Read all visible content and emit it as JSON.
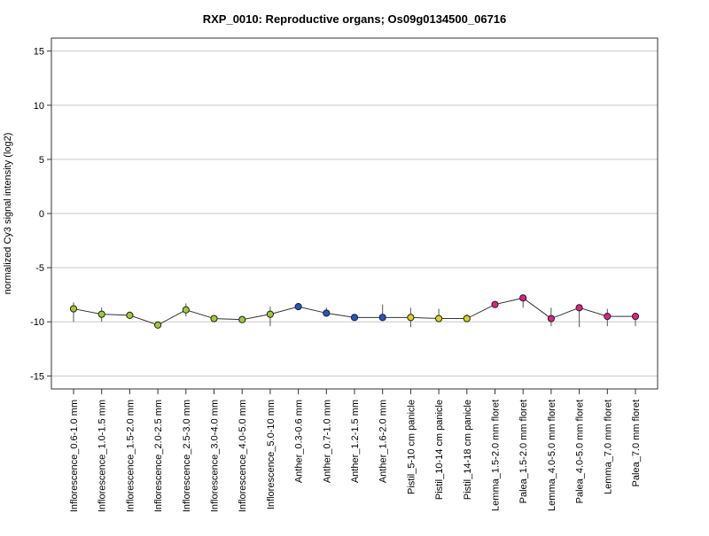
{
  "chart_data": {
    "type": "line",
    "title": "RXP_0010: Reproductive organs; Os09g0134500_06716",
    "xlabel": "",
    "ylabel": "normalized Cy3 signal intensity (log2)",
    "ylim": [
      -16.2,
      16.2
    ],
    "yticks": [
      -15,
      -10,
      -5,
      0,
      5,
      10,
      15
    ],
    "grid": true,
    "categories": [
      "Inflorescence_0.6-1.0 mm",
      "Inflorescence_1.0-1.5 mm",
      "Inflorescence_1.5-2.0 mm",
      "Inflorescence_2.0-2.5 mm",
      "Inflorescence_2.5-3.0 mm",
      "Inflorescence_3.0-4.0 mm",
      "Inflorescence_4.0-5.0 mm",
      "Inflorescence_5.0-10 mm",
      "Anther_0.3-0.6 mm",
      "Anther_0.7-1.0 mm",
      "Anther_1.2-1.5 mm",
      "Anther_1.6-2.0 mm",
      "Pistil_5-10 cm panicle",
      "Pistil_10-14 cm panicle",
      "Pistil_14-18 cm panicle",
      "Lemma_1.5-2.0 mm floret",
      "Palea_1.5-2.0 mm floret",
      "Lemma_4.0-5.0 mm floret",
      "Palea_4.0-5.0 mm floret",
      "Lemma_7.0 mm floret",
      "Palea_7.0 mm floret"
    ],
    "values": [
      -8.8,
      -9.3,
      -9.4,
      -10.3,
      -8.9,
      -9.7,
      -9.8,
      -9.3,
      -8.6,
      -9.2,
      -9.6,
      -9.6,
      -9.6,
      -9.7,
      -9.7,
      -8.4,
      -7.8,
      -9.7,
      -8.7,
      -9.5,
      -9.5
    ],
    "error_low": [
      -10.0,
      -10.0,
      -9.6,
      -10.6,
      -9.5,
      -9.8,
      -9.9,
      -10.4,
      -8.8,
      -9.5,
      -9.7,
      -9.7,
      -10.5,
      -9.9,
      -10.0,
      -8.6,
      -8.7,
      -10.4,
      -10.5,
      -10.4,
      -10.4
    ],
    "error_high": [
      -8.2,
      -8.7,
      -9.2,
      -10.0,
      -8.3,
      -9.5,
      -9.7,
      -8.6,
      -8.4,
      -8.7,
      -9.5,
      -8.4,
      -8.7,
      -8.8,
      -9.3,
      -8.2,
      -7.6,
      -8.7,
      -8.4,
      -8.8,
      -9.3
    ],
    "point_colors": [
      "#9acd32",
      "#9acd32",
      "#9acd32",
      "#9acd32",
      "#9acd32",
      "#9acd32",
      "#9acd32",
      "#9acd32",
      "#2255cc",
      "#2255cc",
      "#2255cc",
      "#2255cc",
      "#e0d020",
      "#e0d020",
      "#e0d020",
      "#e0208a",
      "#e0208a",
      "#e0208a",
      "#e0208a",
      "#e0208a",
      "#e0208a"
    ],
    "line_color": "#333333",
    "grid_color": "#c8c8c8"
  }
}
